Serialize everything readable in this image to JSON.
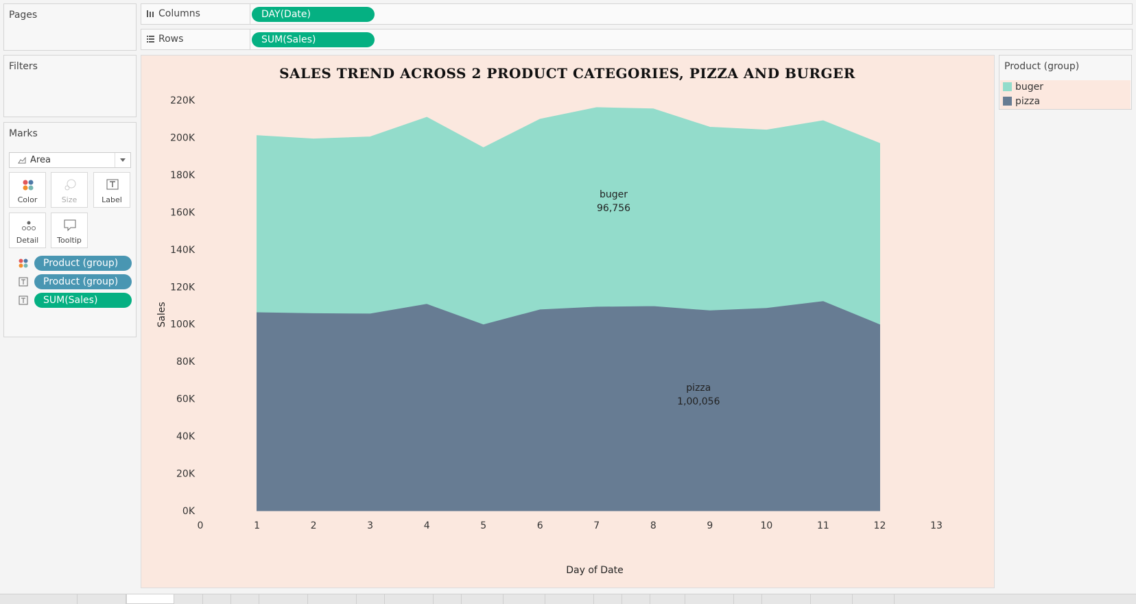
{
  "pages": {
    "title": "Pages"
  },
  "filters": {
    "title": "Filters"
  },
  "shelves": {
    "columns_label": "Columns",
    "columns_pill": "DAY(Date)",
    "rows_label": "Rows",
    "rows_pill": "SUM(Sales)"
  },
  "marks": {
    "title": "Marks",
    "mark_type": "Area",
    "buttons": [
      "Color",
      "Size",
      "Label",
      "Detail",
      "Tooltip"
    ],
    "pills": [
      {
        "label": "Product (group)",
        "icon": "color-dots-icon",
        "color": "#4996b2"
      },
      {
        "label": "Product (group)",
        "icon": "label-icon",
        "color": "#4996b2"
      },
      {
        "label": "SUM(Sales)",
        "icon": "label-icon",
        "color": "#05b082"
      }
    ]
  },
  "legend": {
    "title": "Product (group)",
    "items": [
      {
        "label": "buger",
        "color": "#93dccb"
      },
      {
        "label": "pizza",
        "color": "#677c93"
      }
    ]
  },
  "chart_data": {
    "type": "area",
    "title": "SALES TREND ACROSS 2 PRODUCT CATEGORIES, PIZZA AND BURGER",
    "xlabel": "Day of Date",
    "ylabel": "Sales",
    "xlim": [
      0,
      13
    ],
    "ylim": [
      0,
      220000
    ],
    "x_ticks": [
      "0",
      "1",
      "2",
      "3",
      "4",
      "5",
      "6",
      "7",
      "8",
      "9",
      "10",
      "11",
      "12",
      "13"
    ],
    "y_ticks": [
      "0K",
      "20K",
      "40K",
      "60K",
      "80K",
      "100K",
      "120K",
      "140K",
      "160K",
      "180K",
      "200K",
      "220K"
    ],
    "x": [
      1,
      2,
      3,
      4,
      5,
      6,
      7,
      8,
      9,
      10,
      11,
      12
    ],
    "stacked": true,
    "series": [
      {
        "name": "pizza",
        "color": "#677c93",
        "values": [
          106500,
          106000,
          105800,
          111000,
          100000,
          108000,
          109500,
          109800,
          107500,
          108800,
          112500,
          100056
        ]
      },
      {
        "name": "buger",
        "color": "#93dccb",
        "values": [
          94500,
          93200,
          94500,
          99800,
          94500,
          101800,
          106500,
          105500,
          98000,
          95200,
          96500,
          96756
        ]
      }
    ],
    "annotations": [
      {
        "series": "buger",
        "text": "buger",
        "value": "96,756"
      },
      {
        "series": "pizza",
        "text": "pizza",
        "value": "1,00,056"
      }
    ],
    "grid": false,
    "background": "#fbe8df"
  }
}
